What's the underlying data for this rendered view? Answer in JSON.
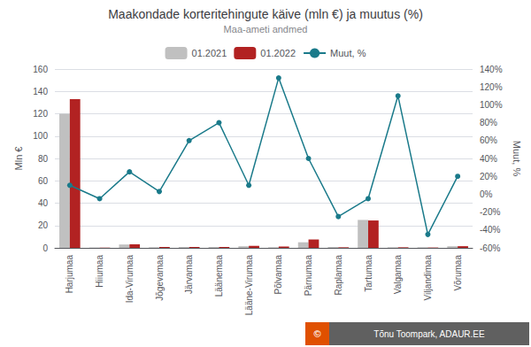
{
  "chart_data": {
    "type": "bar",
    "title": "Maakondade korteritehingute käive (mln €) ja muutus (%)",
    "subtitle": "Maa-ameti andmed",
    "ylabel": "Mln €",
    "y2label": "Muut, %",
    "categories": [
      "Harjumaa",
      "Hiiumaa",
      "Ida-Virumaa",
      "Jõgevamaa",
      "Järvamaa",
      "Läänemaa",
      "Lääne-Virumaa",
      "Põlvamaa",
      "Pärnumaa",
      "Raplamaa",
      "Tartumaa",
      "Valgamaa",
      "Viljandimaa",
      "Võrumaa"
    ],
    "series": [
      {
        "name": "01.2021",
        "color": "#c0c0c0",
        "values": [
          120.0,
          0.3,
          3.0,
          0.5,
          0.8,
          0.8,
          1.5,
          0.5,
          5.0,
          0.8,
          25.0,
          0.5,
          0.5,
          1.5
        ]
      },
      {
        "name": "01.2022",
        "color": "#b22222",
        "values": [
          133.0,
          0.2,
          3.2,
          0.8,
          0.8,
          0.8,
          1.8,
          1.2,
          7.5,
          0.5,
          24.5,
          0.5,
          0.3,
          1.5
        ]
      },
      {
        "name": "Muut, %",
        "type": "line",
        "marker": "circle",
        "axis": "y2",
        "color": "#1a7a8a",
        "values": [
          10,
          -5,
          25,
          3,
          60,
          80,
          10,
          130,
          40,
          -25,
          -5,
          110,
          -45,
          20
        ]
      }
    ],
    "ylim": [
      0,
      160
    ],
    "yticks": [
      0,
      20,
      40,
      60,
      80,
      100,
      120,
      140,
      160
    ],
    "y2lim": [
      -60,
      140
    ],
    "y2ticks": [
      {
        "value": -60,
        "label": "-60%"
      },
      {
        "value": -40,
        "label": "-40%"
      },
      {
        "value": -20,
        "label": "-20%"
      },
      {
        "value": 0,
        "label": "0%"
      },
      {
        "value": 20,
        "label": "20%"
      },
      {
        "value": 40,
        "label": "40%"
      },
      {
        "value": 60,
        "label": "60%"
      },
      {
        "value": 80,
        "label": "80%"
      },
      {
        "value": 100,
        "label": "100%"
      },
      {
        "value": 120,
        "label": "120%"
      },
      {
        "value": 140,
        "label": "140%"
      }
    ],
    "grid": true,
    "legend": "top",
    "annotations": [
      "©",
      "Tõnu Toompark, ADAUR.EE"
    ]
  }
}
